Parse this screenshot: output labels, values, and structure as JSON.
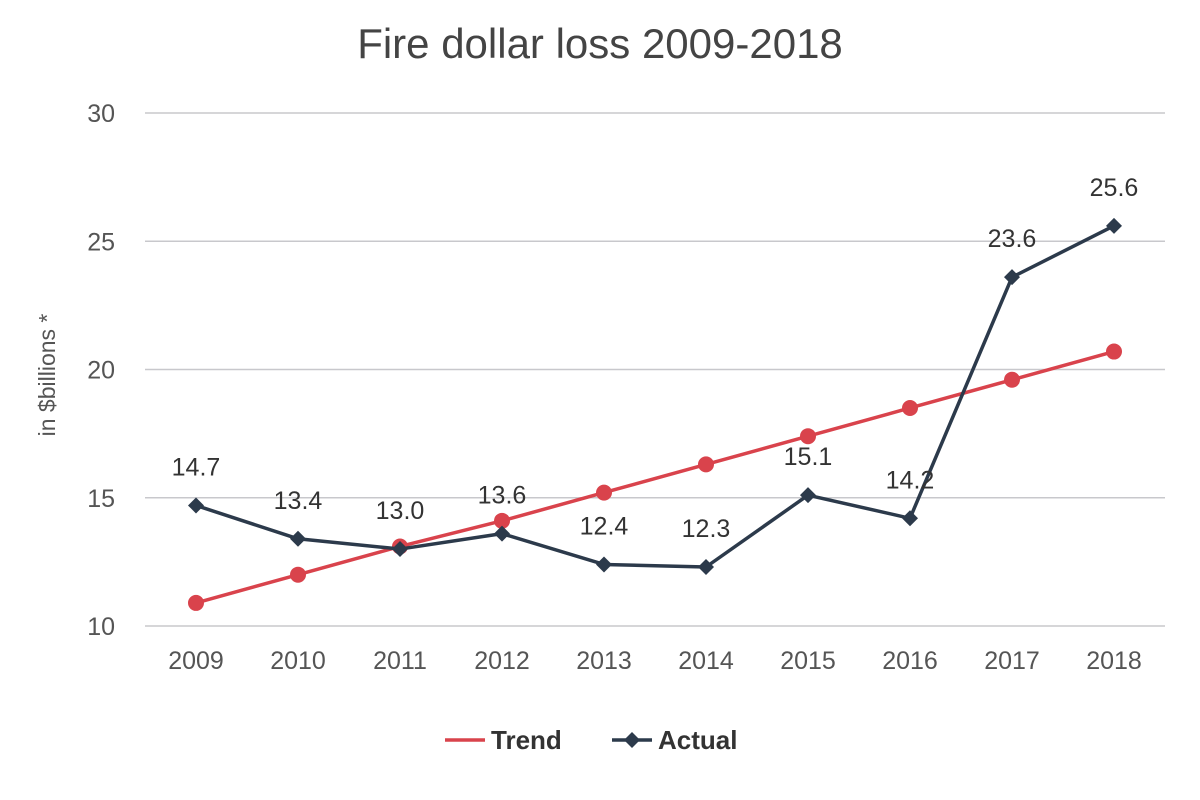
{
  "chart_data": {
    "type": "line",
    "title": "Fire dollar loss 2009-2018",
    "xlabel": "",
    "ylabel": "in $billions *",
    "ylim": [
      10,
      30
    ],
    "yticks": [
      10,
      15,
      20,
      25,
      30
    ],
    "grid": true,
    "legend_position": "bottom",
    "categories": [
      "2009",
      "2010",
      "2011",
      "2012",
      "2013",
      "2014",
      "2015",
      "2016",
      "2017",
      "2018"
    ],
    "series": [
      {
        "name": "Trend",
        "color": "#d9434c",
        "marker": "circle",
        "values": [
          10.9,
          12.0,
          13.1,
          14.1,
          15.2,
          16.3,
          17.4,
          18.5,
          19.6,
          20.7
        ]
      },
      {
        "name": "Actual",
        "color": "#2c3a4b",
        "marker": "diamond",
        "values": [
          14.7,
          13.4,
          13.0,
          13.6,
          12.4,
          12.3,
          15.1,
          14.2,
          23.6,
          25.6
        ],
        "labels": [
          "14.7",
          "13.4",
          "13.0",
          "13.6",
          "12.4",
          "12.3",
          "15.1",
          "14.2",
          "23.6",
          "25.6"
        ]
      }
    ]
  }
}
